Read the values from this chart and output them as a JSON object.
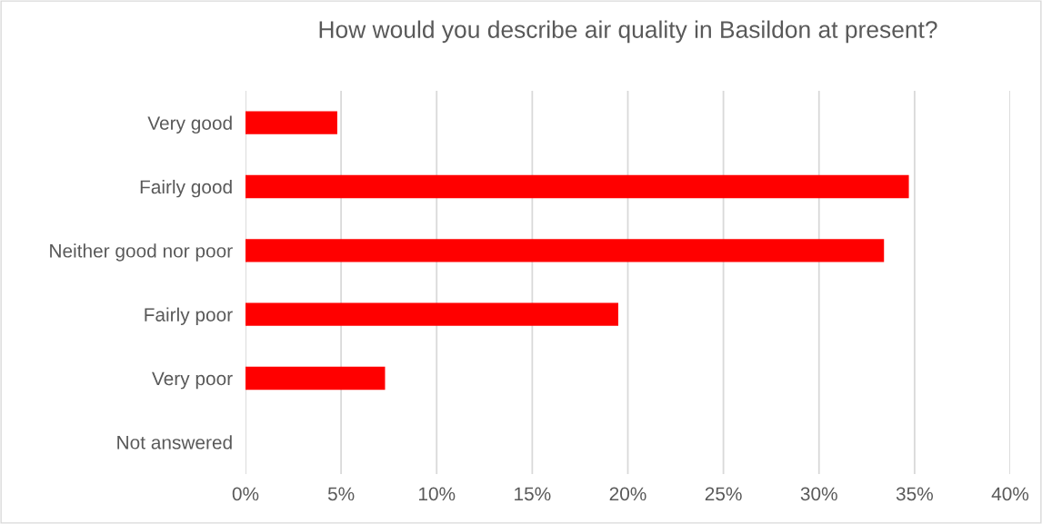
{
  "chart_data": {
    "type": "bar",
    "orientation": "horizontal",
    "title": "How would you describe air quality in Basildon at present?",
    "categories": [
      "Very good",
      "Fairly good",
      "Neither good nor poor",
      "Fairly poor",
      "Very poor",
      "Not answered"
    ],
    "values": [
      4.8,
      34.7,
      33.4,
      19.5,
      7.3,
      0
    ],
    "color": "#ff0000",
    "xlim": [
      0,
      40
    ],
    "xticks": [
      {
        "value": 0,
        "label": "0%"
      },
      {
        "value": 5,
        "label": "5%"
      },
      {
        "value": 10,
        "label": "10%"
      },
      {
        "value": 15,
        "label": "15%"
      },
      {
        "value": 20,
        "label": "20%"
      },
      {
        "value": 25,
        "label": "25%"
      },
      {
        "value": 30,
        "label": "30%"
      },
      {
        "value": 35,
        "label": "35%"
      },
      {
        "value": 40,
        "label": "40%"
      }
    ],
    "grid": "x"
  }
}
